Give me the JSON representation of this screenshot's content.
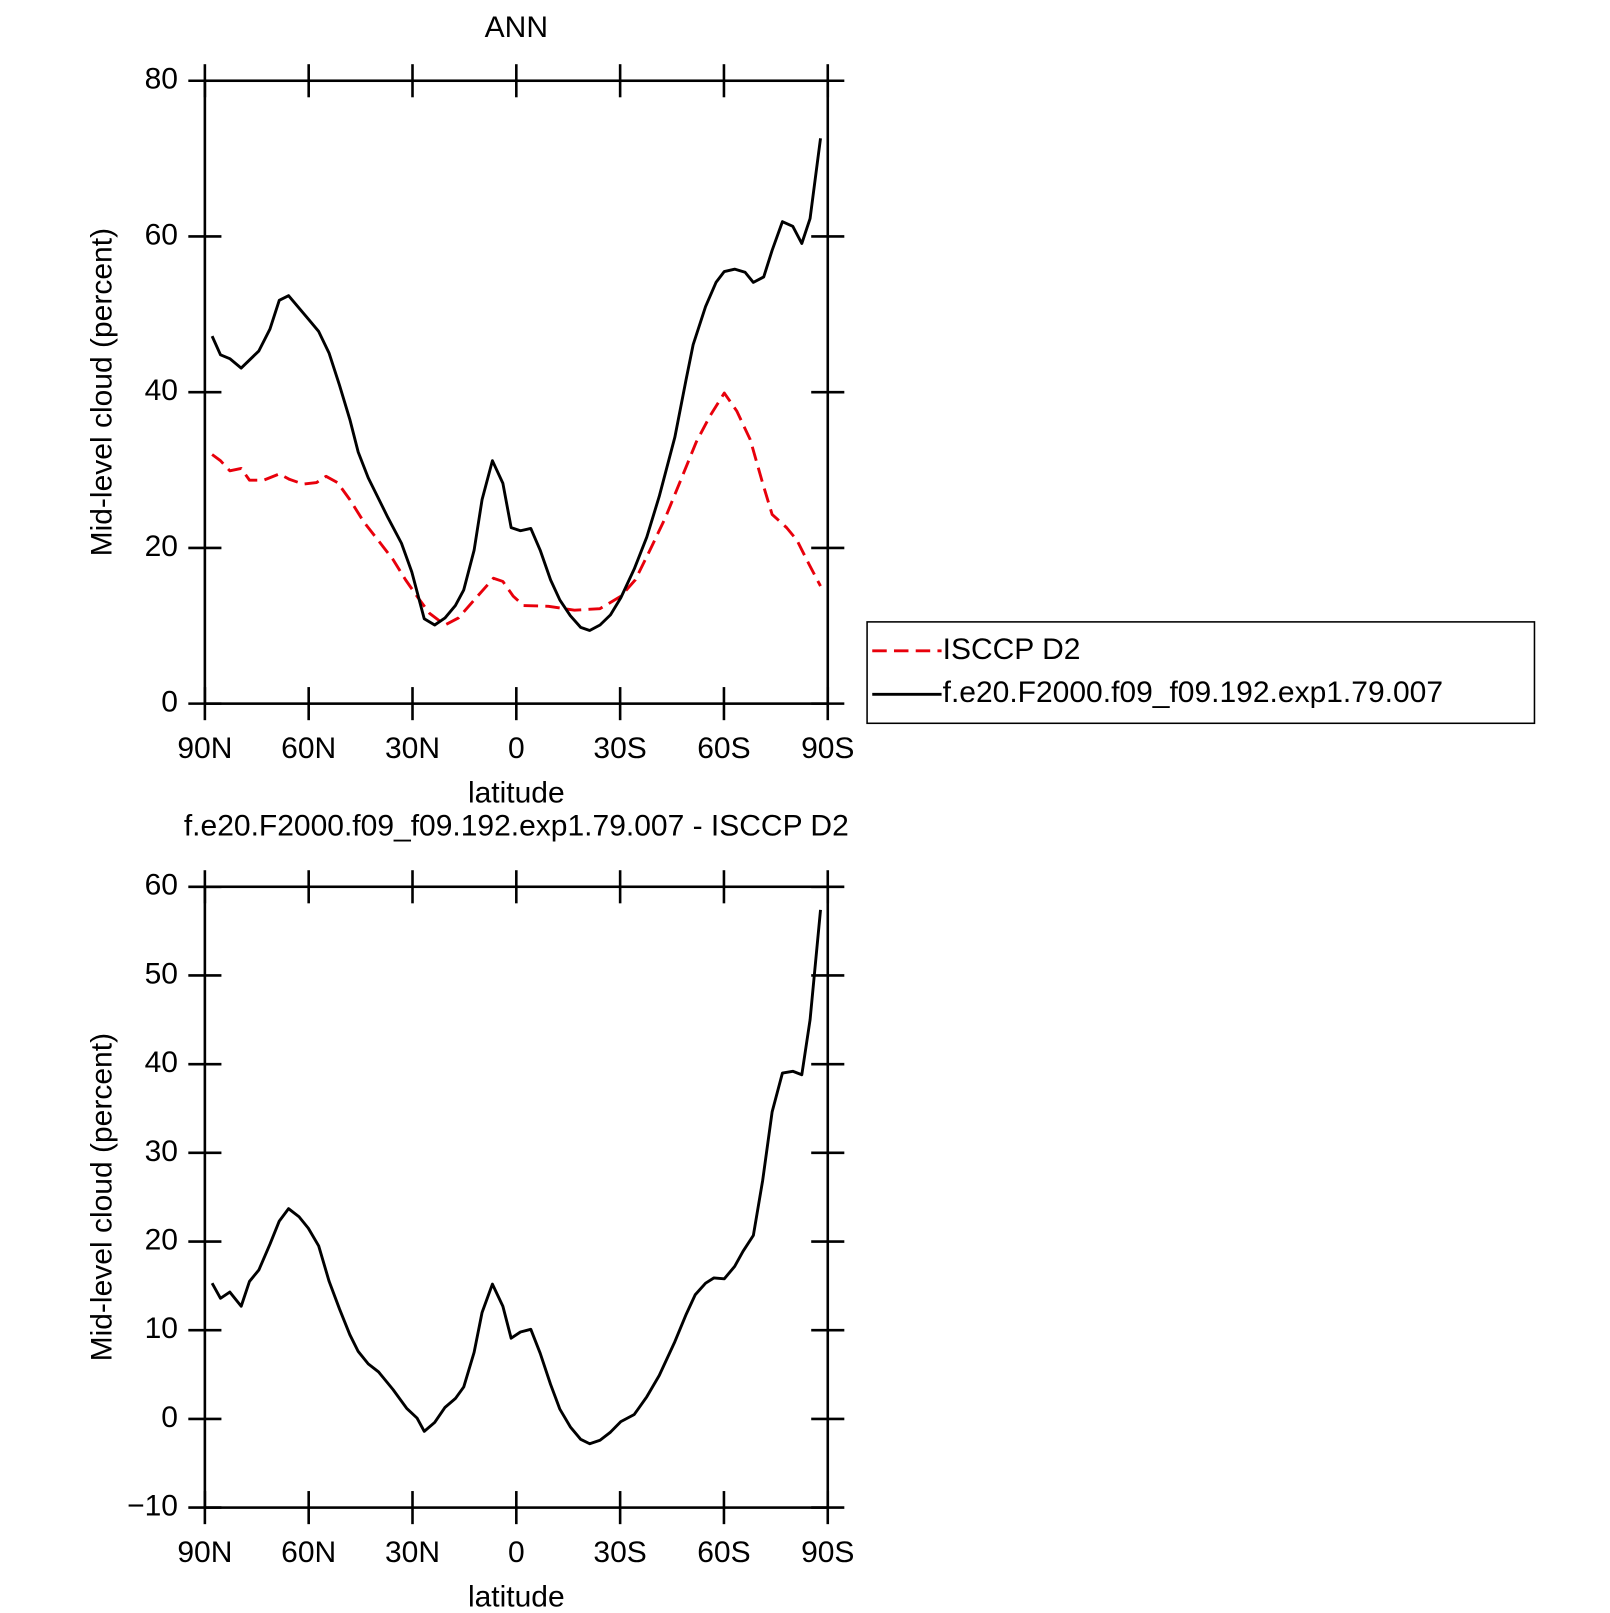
{
  "chart_data": [
    {
      "type": "line",
      "title": "ANN",
      "xlabel": "latitude",
      "ylabel": "Mid-level cloud (percent)",
      "xlim": [
        90,
        -90
      ],
      "xticks": [
        {
          "value": 90,
          "label": "90N"
        },
        {
          "value": 60,
          "label": "60N"
        },
        {
          "value": 30,
          "label": "30N"
        },
        0,
        {
          "value": -30,
          "label": "30S"
        },
        {
          "value": -60,
          "label": "60S"
        },
        {
          "value": -90,
          "label": "90S"
        }
      ],
      "ylim": [
        0,
        80
      ],
      "yticks": [
        0,
        20,
        40,
        60,
        80
      ],
      "legend": "right",
      "series": [
        {
          "name": "ISCCP D2",
          "color": "#e8000b",
          "dash": true,
          "x": [
            87.9,
            85.5,
            82.8,
            79.5,
            77.1,
            73.0,
            68.5,
            65.5,
            61.6,
            57.7,
            55.0,
            51.7,
            48.1,
            44.0,
            39.8,
            35.6,
            32.0,
            28.7,
            25.1,
            20.6,
            16.7,
            12.2,
            8.6,
            6.6,
            3.9,
            0.9,
            -2.1,
            -9.3,
            -16.8,
            -24.2,
            -30.2,
            -34.4,
            -38.6,
            -43.1,
            -47.6,
            -52.0,
            -55.9,
            -60.1,
            -63.7,
            -67.6,
            -71.2,
            -73.9,
            -78.1,
            -81.1,
            -84.6,
            -87.9
          ],
          "values": [
            32.0,
            31.2,
            29.9,
            30.2,
            28.7,
            28.7,
            29.5,
            28.8,
            28.2,
            28.4,
            29.2,
            28.4,
            26.2,
            23.3,
            20.9,
            18.5,
            15.9,
            13.8,
            11.6,
            10.1,
            11.0,
            13.3,
            15.1,
            16.1,
            15.7,
            13.8,
            12.6,
            12.5,
            12.0,
            12.2,
            13.8,
            15.9,
            19.7,
            23.9,
            28.8,
            33.6,
            36.9,
            39.9,
            37.6,
            33.9,
            28.3,
            24.3,
            22.6,
            21.0,
            17.9,
            15.1
          ]
        },
        {
          "name": "f.e20.F2000.f09_f09.192.exp1.79.007",
          "color": "#000000",
          "dash": false,
          "x": [
            87.9,
            85.5,
            82.8,
            79.5,
            74.4,
            71.2,
            68.5,
            65.8,
            60.1,
            57.1,
            54.1,
            51.1,
            48.1,
            45.7,
            42.8,
            37.1,
            33.2,
            30.2,
            26.6,
            23.6,
            20.6,
            17.6,
            15.2,
            12.2,
            9.9,
            6.9,
            3.9,
            1.5,
            -1.2,
            -4.2,
            -6.9,
            -9.9,
            -12.6,
            -15.6,
            -18.6,
            -21.2,
            -24.2,
            -27.2,
            -30.2,
            -34.1,
            -37.7,
            -41.3,
            -45.8,
            -49.1,
            -51.1,
            -54.7,
            -57.7,
            -60.1,
            -63.1,
            -66.1,
            -68.5,
            -71.5,
            -73.9,
            -76.9,
            -79.9,
            -82.5,
            -84.9,
            -87.9
          ],
          "values": [
            47.2,
            44.8,
            44.3,
            43.1,
            45.3,
            48.1,
            51.8,
            52.4,
            49.4,
            47.8,
            45.0,
            40.9,
            36.5,
            32.3,
            29.0,
            23.9,
            20.6,
            16.9,
            10.9,
            10.1,
            11.0,
            12.6,
            14.6,
            19.7,
            26.2,
            31.2,
            28.3,
            22.6,
            22.2,
            22.5,
            19.7,
            15.9,
            13.3,
            11.3,
            9.8,
            9.4,
            10.1,
            11.4,
            13.6,
            17.3,
            21.4,
            26.6,
            34.2,
            41.7,
            46.1,
            51.0,
            54.1,
            55.5,
            55.8,
            55.4,
            54.1,
            54.8,
            58.2,
            61.9,
            61.3,
            59.1,
            62.3,
            72.6
          ]
        }
      ]
    },
    {
      "type": "line",
      "title": "f.e20.F2000.f09_f09.192.exp1.79.007 - ISCCP D2",
      "xlabel": "latitude",
      "ylabel": "Mid-level cloud (percent)",
      "xlim": [
        90,
        -90
      ],
      "xticks": [
        {
          "value": 90,
          "label": "90N"
        },
        {
          "value": 60,
          "label": "60N"
        },
        {
          "value": 30,
          "label": "30N"
        },
        0,
        {
          "value": -30,
          "label": "30S"
        },
        {
          "value": -60,
          "label": "60S"
        },
        {
          "value": -90,
          "label": "90S"
        }
      ],
      "ylim": [
        -10,
        60
      ],
      "yticks": [
        {
          "value": -10,
          "label": "−10"
        },
        0,
        10,
        20,
        30,
        40,
        50,
        60
      ],
      "series": [
        {
          "color": "#000000",
          "dash": false,
          "x": [
            87.9,
            85.5,
            82.8,
            79.5,
            77.1,
            74.4,
            71.2,
            68.5,
            65.8,
            62.8,
            60.1,
            57.1,
            54.1,
            51.1,
            48.1,
            45.7,
            42.8,
            39.8,
            35.6,
            31.7,
            28.7,
            26.6,
            23.6,
            20.6,
            17.6,
            15.2,
            12.2,
            9.9,
            6.9,
            3.9,
            1.5,
            -1.2,
            -4.2,
            -6.9,
            -9.9,
            -12.6,
            -15.6,
            -18.6,
            -21.2,
            -24.2,
            -27.2,
            -30.2,
            -34.1,
            -37.7,
            -41.3,
            -45.8,
            -49.1,
            -51.7,
            -54.7,
            -57.1,
            -60.1,
            -63.1,
            -65.5,
            -68.5,
            -71.2,
            -73.9,
            -76.9,
            -79.9,
            -82.5,
            -84.9,
            -87.9
          ],
          "values": [
            15.3,
            13.6,
            14.3,
            12.7,
            15.5,
            16.8,
            19.7,
            22.3,
            23.7,
            22.8,
            21.5,
            19.5,
            15.5,
            12.4,
            9.5,
            7.6,
            6.2,
            5.3,
            3.3,
            1.2,
            0.1,
            -1.4,
            -0.4,
            1.3,
            2.3,
            3.6,
            7.5,
            12.0,
            15.2,
            12.7,
            9.1,
            9.8,
            10.1,
            7.4,
            3.9,
            1.1,
            -0.9,
            -2.3,
            -2.8,
            -2.4,
            -1.5,
            -0.3,
            0.5,
            2.5,
            4.9,
            8.7,
            11.8,
            14.0,
            15.3,
            15.9,
            15.8,
            17.2,
            18.9,
            20.7,
            26.9,
            34.6,
            39.0,
            39.2,
            38.8,
            45.0,
            57.4
          ]
        }
      ]
    }
  ]
}
